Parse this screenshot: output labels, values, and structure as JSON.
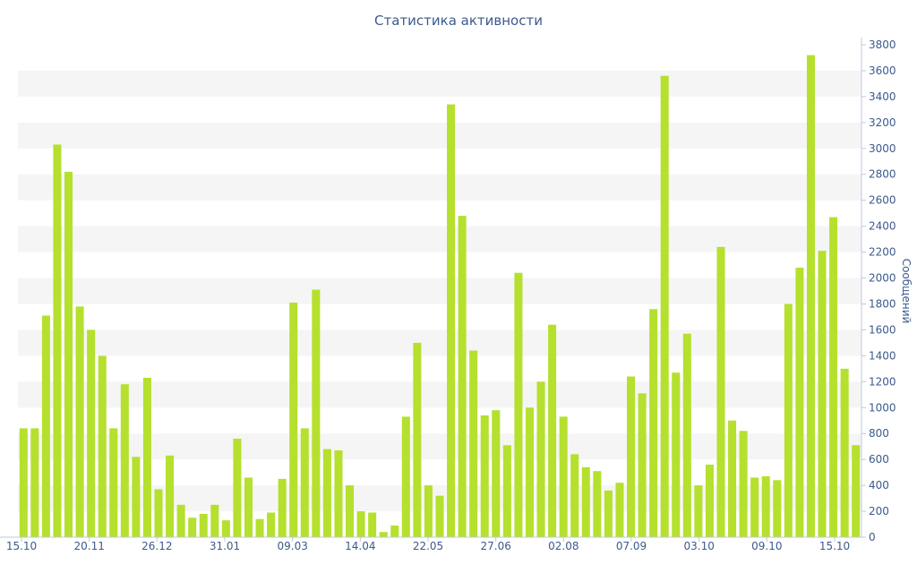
{
  "chart_data": {
    "type": "bar",
    "title": "Статистика активности",
    "ylabel": "Сообщений",
    "xlabel": "",
    "ylim": [
      0,
      3800
    ],
    "y_ticks": [
      0,
      200,
      400,
      600,
      800,
      1000,
      1200,
      1400,
      1600,
      1800,
      2000,
      2200,
      2400,
      2600,
      2800,
      3000,
      3200,
      3400,
      3600,
      3800
    ],
    "y_axis_position": "right",
    "grid": "alternating horizontal bands",
    "legend": "none",
    "bar_color": "#b5e02e",
    "x_tick_labels": [
      "15.10",
      "20.11",
      "26.12",
      "31.01",
      "09.03",
      "14.04",
      "22.05",
      "27.06",
      "02.08",
      "07.09",
      "03.10",
      "09.10",
      "15.10"
    ],
    "values": [
      840,
      840,
      1710,
      3030,
      2820,
      1780,
      1600,
      1400,
      840,
      1180,
      620,
      1230,
      370,
      630,
      250,
      150,
      180,
      250,
      130,
      760,
      460,
      140,
      190,
      450,
      1810,
      840,
      1910,
      680,
      670,
      400,
      200,
      190,
      40,
      90,
      930,
      1500,
      400,
      320,
      3340,
      2480,
      1440,
      940,
      980,
      710,
      2040,
      1000,
      1200,
      1640,
      930,
      640,
      540,
      510,
      360,
      420,
      1240,
      1110,
      1760,
      3560,
      1270,
      1570,
      400,
      560,
      2240,
      900,
      820,
      460,
      470,
      440,
      1800,
      2080,
      3720,
      2210,
      2470,
      1300,
      710
    ]
  }
}
